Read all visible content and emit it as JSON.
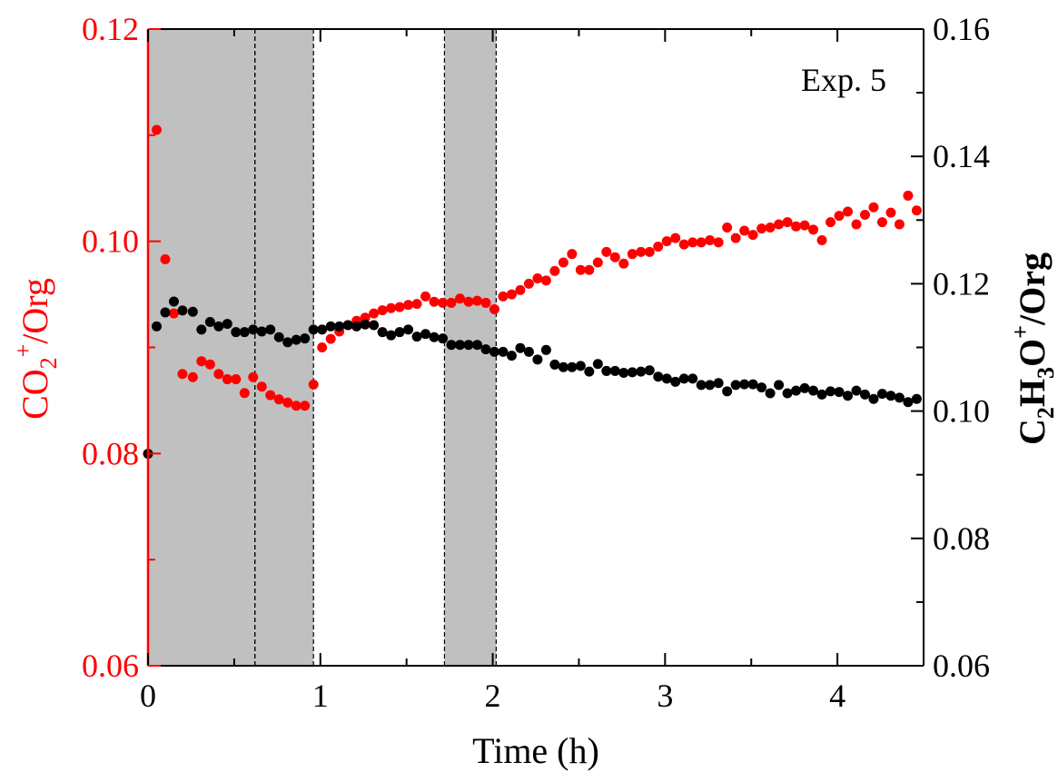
{
  "chart_data": {
    "type": "scatter",
    "annotation": "Exp. 5",
    "xlabel": "Time (h)",
    "ylabel_left": {
      "base": "CO",
      "sub": "2",
      "sup": "+",
      "tail": "/Org"
    },
    "ylabel_right": {
      "parts": [
        {
          "t": "C"
        },
        {
          "t": "2",
          "sub": true
        },
        {
          "t": "H"
        },
        {
          "t": "3",
          "sub": true
        },
        {
          "t": "O"
        },
        {
          "t": "+",
          "sup": true
        },
        {
          "t": "/Org"
        }
      ]
    },
    "xlim": [
      0,
      4.5
    ],
    "ylim_left": [
      0.06,
      0.12
    ],
    "ylim_right": [
      0.06,
      0.16
    ],
    "x_ticks": [
      "0",
      "1",
      "2",
      "3",
      "4"
    ],
    "y_left_ticks": [
      "0.06",
      "0.08",
      "0.10",
      "0.12"
    ],
    "y_right_ticks": [
      "0.06",
      "0.08",
      "0.10",
      "0.12",
      "0.14",
      "0.16"
    ],
    "shaded_regions": [
      [
        0.0,
        0.62
      ],
      [
        0.62,
        0.96
      ],
      [
        1.72,
        2.02
      ]
    ],
    "colors": {
      "left_axis": "#ff0000",
      "series_co2": "#ff0000",
      "series_c2h3o": "#000000",
      "shade": "#c0c0c0"
    },
    "series": [
      {
        "axis": "left",
        "points": [
          [
            0.05,
            0.1105
          ],
          [
            0.1,
            0.0983
          ],
          [
            0.15,
            0.0932
          ],
          [
            0.2,
            0.0875
          ],
          [
            0.26,
            0.0872
          ],
          [
            0.31,
            0.0887
          ],
          [
            0.36,
            0.0884
          ],
          [
            0.41,
            0.0875
          ],
          [
            0.46,
            0.087
          ],
          [
            0.51,
            0.087
          ],
          [
            0.56,
            0.0857
          ],
          [
            0.61,
            0.0872
          ],
          [
            0.66,
            0.0863
          ],
          [
            0.71,
            0.0855
          ],
          [
            0.76,
            0.0851
          ],
          [
            0.81,
            0.0848
          ],
          [
            0.86,
            0.0845
          ],
          [
            0.91,
            0.0845
          ],
          [
            0.96,
            0.0865
          ],
          [
            1.01,
            0.09
          ],
          [
            1.06,
            0.0908
          ],
          [
            1.11,
            0.0915
          ],
          [
            1.16,
            0.0921
          ],
          [
            1.21,
            0.0925
          ],
          [
            1.26,
            0.0928
          ],
          [
            1.31,
            0.0932
          ],
          [
            1.36,
            0.0935
          ],
          [
            1.41,
            0.0937
          ],
          [
            1.46,
            0.0938
          ],
          [
            1.51,
            0.094
          ],
          [
            1.56,
            0.0941
          ],
          [
            1.61,
            0.0948
          ],
          [
            1.66,
            0.0943
          ],
          [
            1.71,
            0.0942
          ],
          [
            1.76,
            0.0942
          ],
          [
            1.81,
            0.0946
          ],
          [
            1.86,
            0.0943
          ],
          [
            1.91,
            0.0944
          ],
          [
            1.96,
            0.0942
          ],
          [
            2.01,
            0.0936
          ],
          [
            2.06,
            0.0948
          ],
          [
            2.11,
            0.095
          ],
          [
            2.16,
            0.0954
          ],
          [
            2.21,
            0.096
          ],
          [
            2.26,
            0.0965
          ],
          [
            2.31,
            0.0963
          ],
          [
            2.36,
            0.0972
          ],
          [
            2.41,
            0.098
          ],
          [
            2.46,
            0.0988
          ],
          [
            2.51,
            0.0973
          ],
          [
            2.56,
            0.0973
          ],
          [
            2.61,
            0.098
          ],
          [
            2.66,
            0.099
          ],
          [
            2.71,
            0.0985
          ],
          [
            2.76,
            0.0979
          ],
          [
            2.81,
            0.0988
          ],
          [
            2.86,
            0.099
          ],
          [
            2.91,
            0.099
          ],
          [
            2.96,
            0.0995
          ],
          [
            3.01,
            0.1
          ],
          [
            3.06,
            0.1003
          ],
          [
            3.11,
            0.0997
          ],
          [
            3.16,
            0.0999
          ],
          [
            3.21,
            0.0999
          ],
          [
            3.26,
            0.1001
          ],
          [
            3.31,
            0.0999
          ],
          [
            3.36,
            0.1013
          ],
          [
            3.41,
            0.1003
          ],
          [
            3.46,
            0.101
          ],
          [
            3.51,
            0.1006
          ],
          [
            3.56,
            0.1012
          ],
          [
            3.61,
            0.1013
          ],
          [
            3.66,
            0.1016
          ],
          [
            3.71,
            0.1018
          ],
          [
            3.76,
            0.1014
          ],
          [
            3.81,
            0.1015
          ],
          [
            3.86,
            0.1011
          ],
          [
            3.91,
            0.1001
          ],
          [
            3.96,
            0.1018
          ],
          [
            4.01,
            0.1024
          ],
          [
            4.06,
            0.1028
          ],
          [
            4.11,
            0.1016
          ],
          [
            4.16,
            0.1025
          ],
          [
            4.21,
            0.1032
          ],
          [
            4.26,
            0.1018
          ],
          [
            4.31,
            0.1027
          ],
          [
            4.36,
            0.1016
          ],
          [
            4.41,
            0.1043
          ],
          [
            4.46,
            0.1029
          ]
        ]
      },
      {
        "axis": "right",
        "points": [
          [
            0.0,
            0.0933
          ],
          [
            0.05,
            0.1133
          ],
          [
            0.1,
            0.1155
          ],
          [
            0.15,
            0.1172
          ],
          [
            0.2,
            0.1158
          ],
          [
            0.26,
            0.1156
          ],
          [
            0.31,
            0.1128
          ],
          [
            0.36,
            0.114
          ],
          [
            0.41,
            0.1133
          ],
          [
            0.46,
            0.1137
          ],
          [
            0.51,
            0.1124
          ],
          [
            0.56,
            0.1124
          ],
          [
            0.61,
            0.1128
          ],
          [
            0.66,
            0.1125
          ],
          [
            0.71,
            0.1128
          ],
          [
            0.76,
            0.1116
          ],
          [
            0.81,
            0.1108
          ],
          [
            0.86,
            0.1112
          ],
          [
            0.91,
            0.1114
          ],
          [
            0.96,
            0.1128
          ],
          [
            1.01,
            0.1128
          ],
          [
            1.06,
            0.1133
          ],
          [
            1.11,
            0.1133
          ],
          [
            1.16,
            0.1135
          ],
          [
            1.21,
            0.1133
          ],
          [
            1.26,
            0.1136
          ],
          [
            1.31,
            0.1135
          ],
          [
            1.36,
            0.1124
          ],
          [
            1.41,
            0.1119
          ],
          [
            1.46,
            0.1124
          ],
          [
            1.51,
            0.1128
          ],
          [
            1.56,
            0.1117
          ],
          [
            1.61,
            0.1121
          ],
          [
            1.66,
            0.1116
          ],
          [
            1.71,
            0.1114
          ],
          [
            1.76,
            0.1104
          ],
          [
            1.81,
            0.1104
          ],
          [
            1.86,
            0.1104
          ],
          [
            1.91,
            0.1104
          ],
          [
            1.96,
            0.1097
          ],
          [
            2.01,
            0.1093
          ],
          [
            2.06,
            0.1093
          ],
          [
            2.11,
            0.1087
          ],
          [
            2.16,
            0.1099
          ],
          [
            2.21,
            0.1093
          ],
          [
            2.26,
            0.1081
          ],
          [
            2.31,
            0.1096
          ],
          [
            2.36,
            0.1073
          ],
          [
            2.41,
            0.1069
          ],
          [
            2.46,
            0.1069
          ],
          [
            2.51,
            0.1071
          ],
          [
            2.56,
            0.1062
          ],
          [
            2.61,
            0.1074
          ],
          [
            2.66,
            0.1063
          ],
          [
            2.71,
            0.1063
          ],
          [
            2.76,
            0.106
          ],
          [
            2.81,
            0.1061
          ],
          [
            2.86,
            0.1062
          ],
          [
            2.91,
            0.1064
          ],
          [
            2.96,
            0.1054
          ],
          [
            3.01,
            0.1051
          ],
          [
            3.06,
            0.1046
          ],
          [
            3.11,
            0.1051
          ],
          [
            3.16,
            0.1051
          ],
          [
            3.21,
            0.1041
          ],
          [
            3.26,
            0.1041
          ],
          [
            3.31,
            0.1044
          ],
          [
            3.36,
            0.1031
          ],
          [
            3.41,
            0.1041
          ],
          [
            3.46,
            0.1042
          ],
          [
            3.51,
            0.1042
          ],
          [
            3.56,
            0.1037
          ],
          [
            3.61,
            0.1028
          ],
          [
            3.66,
            0.1041
          ],
          [
            3.71,
            0.1028
          ],
          [
            3.76,
            0.1032
          ],
          [
            3.81,
            0.1036
          ],
          [
            3.86,
            0.1032
          ],
          [
            3.91,
            0.1026
          ],
          [
            3.96,
            0.1031
          ],
          [
            4.01,
            0.103
          ],
          [
            4.06,
            0.1024
          ],
          [
            4.11,
            0.1032
          ],
          [
            4.16,
            0.1026
          ],
          [
            4.21,
            0.1019
          ],
          [
            4.26,
            0.1027
          ],
          [
            4.31,
            0.1024
          ],
          [
            4.36,
            0.1021
          ],
          [
            4.41,
            0.1014
          ],
          [
            4.46,
            0.1019
          ]
        ]
      }
    ]
  }
}
